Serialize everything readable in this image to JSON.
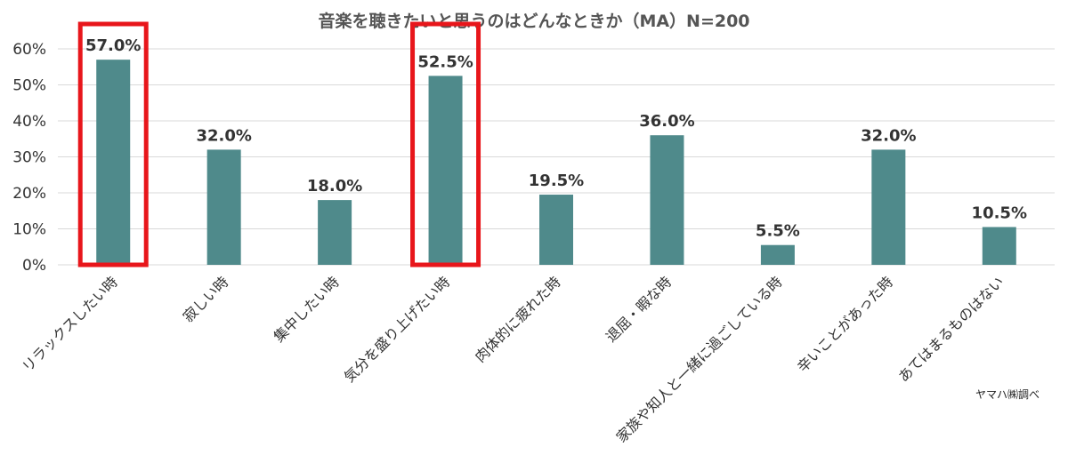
{
  "chart_data": {
    "type": "bar",
    "title": "音楽を聴きたいと思うのはどんなときか（MA）N=200",
    "source": "ヤマハ㈱調べ",
    "categories": [
      "リラックスしたい時",
      "寂しい時",
      "集中したい時",
      "気分を盛り上げたい時",
      "肉体的に疲れた時",
      "退屈・暇な時",
      "家族や知人と一緒に過ごしている時",
      "辛いことがあった時",
      "あてはまるものはない"
    ],
    "values": [
      57.0,
      32.0,
      18.0,
      52.5,
      19.5,
      36.0,
      5.5,
      32.0,
      10.5
    ],
    "data_labels": [
      "57.0%",
      "32.0%",
      "18.0%",
      "52.5%",
      "19.5%",
      "36.0%",
      "5.5%",
      "32.0%",
      "10.5%"
    ],
    "y_ticks": [
      "0%",
      "10%",
      "20%",
      "30%",
      "40%",
      "50%",
      "60%"
    ],
    "ylim": [
      0,
      60
    ],
    "grid": true,
    "highlighted_categories": [
      0,
      3
    ],
    "bar_color": "#4f8a8b",
    "highlight_color": "#e8161b",
    "grid_color": "#d9d9d9"
  }
}
